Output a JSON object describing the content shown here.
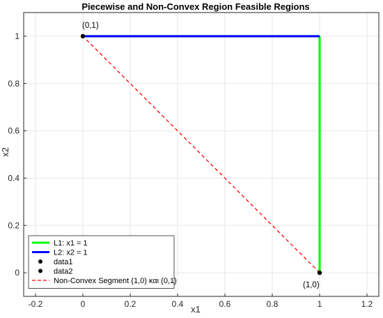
{
  "chart_data": {
    "type": "line",
    "title": "Piecewise and Non-Convex Region Feasible Regions",
    "xlabel": "x1",
    "ylabel": "x2",
    "xlim": [
      -0.25,
      1.25
    ],
    "ylim": [
      -0.1,
      1.1
    ],
    "xticks": [
      -0.2,
      0,
      0.2,
      0.4,
      0.6,
      0.8,
      1,
      1.2
    ],
    "yticks": [
      0,
      0.2,
      0.4,
      0.6,
      0.8,
      1
    ],
    "xtick_labels": [
      "-0.2",
      "0",
      "0.2",
      "0.4",
      "0.6",
      "0.8",
      "1",
      "1.2"
    ],
    "ytick_labels": [
      "0",
      "0.2",
      "0.4",
      "0.6",
      "0.8",
      "1"
    ],
    "grid": true,
    "legend_position": "bottom-left",
    "series": [
      {
        "name": "L1: x1 = 1",
        "kind": "line",
        "color": "#00ff00",
        "style": "solid",
        "x": [
          1,
          1
        ],
        "y": [
          0,
          1
        ]
      },
      {
        "name": "L2: x2 = 1",
        "kind": "line",
        "color": "#0000ff",
        "style": "solid",
        "x": [
          0,
          1
        ],
        "y": [
          1,
          1
        ]
      },
      {
        "name": "data1",
        "kind": "point",
        "color": "#000000",
        "x": [
          0
        ],
        "y": [
          1
        ]
      },
      {
        "name": "data2",
        "kind": "point",
        "color": "#000000",
        "x": [
          1
        ],
        "y": [
          0
        ]
      },
      {
        "name": "Non-Convex Segment (1,0) και (0,1)",
        "kind": "line",
        "color": "#ff0000",
        "style": "dashed",
        "x": [
          1,
          0
        ],
        "y": [
          0,
          1
        ]
      }
    ],
    "annotations": [
      {
        "text": "(0,1)",
        "x": 0,
        "y": 1,
        "placement": "above"
      },
      {
        "text": "(1,0)",
        "x": 1,
        "y": 0,
        "placement": "below-left"
      }
    ]
  }
}
